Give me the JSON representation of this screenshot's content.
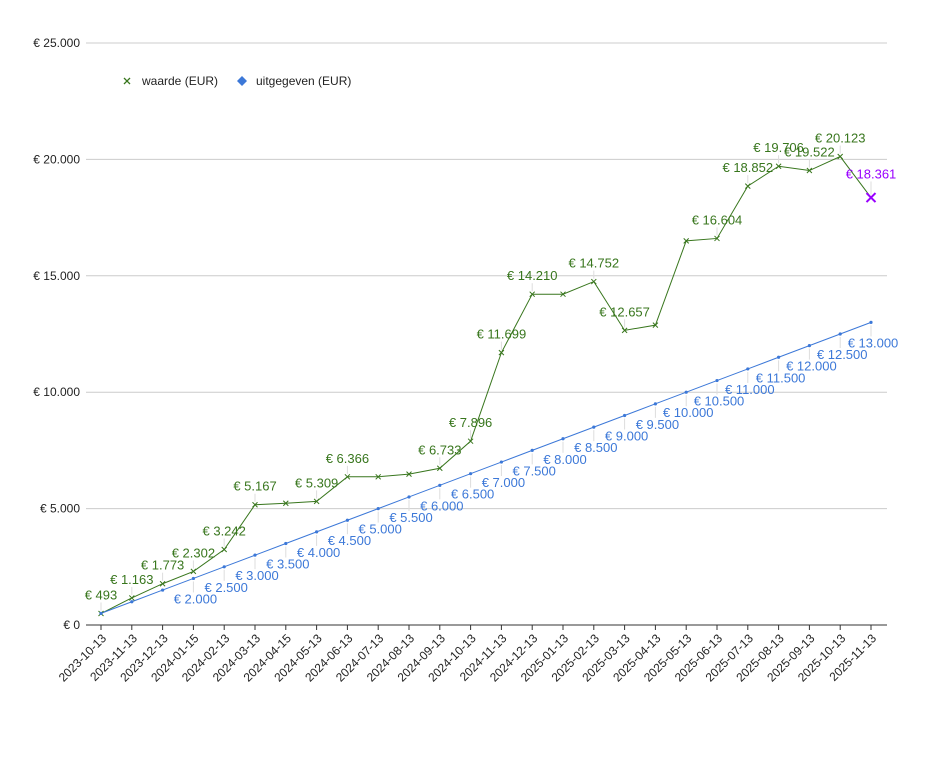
{
  "chart_data": {
    "type": "line",
    "x": [
      "2023-10-13",
      "2023-11-13",
      "2023-12-13",
      "2024-01-15",
      "2024-02-13",
      "2024-03-13",
      "2024-04-15",
      "2024-05-13",
      "2024-06-13",
      "2024-07-13",
      "2024-08-13",
      "2024-09-13",
      "2024-10-13",
      "2024-11-13",
      "2024-12-13",
      "2025-01-13",
      "2025-02-13",
      "2025-03-13",
      "2025-04-13",
      "2025-05-13",
      "2025-06-13",
      "2025-07-13",
      "2025-08-13",
      "2025-09-13",
      "2025-10-13",
      "2025-11-13"
    ],
    "y_ticks": [
      "€ 0",
      "€ 5.000",
      "€ 10.000",
      "€ 15.000",
      "€ 20.000",
      "€ 25.000"
    ],
    "ylim": [
      0,
      25000
    ],
    "grid": true,
    "legend_position": "top-left",
    "series": [
      {
        "name": "waarde (EUR)",
        "color": "#38761d",
        "marker": "x",
        "values": [
          493,
          1163,
          1773,
          2302,
          3242,
          5167,
          5230,
          5309,
          6366,
          6366,
          6480,
          6733,
          7896,
          11699,
          14210,
          14210,
          14752,
          12657,
          12880,
          16500,
          16604,
          18852,
          19706,
          19522,
          20123,
          18361
        ],
        "labels": [
          "€ 493",
          "€ 1.163",
          "€ 1.773",
          "€ 2.302",
          "€ 3.242",
          "€ 5.167",
          "",
          "€ 5.309",
          "€ 6.366",
          "",
          "",
          "€ 6.733",
          "€ 7.896",
          "€ 11.699",
          "€ 14.210",
          "",
          "€ 14.752",
          "€ 12.657",
          "",
          "",
          "€ 16.604",
          "€ 18.852",
          "€ 19.706",
          "€ 19.522",
          "€ 20.123",
          "€ 18.361"
        ]
      },
      {
        "name": "uitgegeven (EUR)",
        "color": "#3c78d8",
        "marker": "diamond",
        "values": [
          500,
          1000,
          1500,
          2000,
          2500,
          3000,
          3500,
          4000,
          4500,
          5000,
          5500,
          6000,
          6500,
          7000,
          7500,
          8000,
          8500,
          9000,
          9500,
          10000,
          10500,
          11000,
          11500,
          12000,
          12500,
          13000
        ],
        "labels": [
          "",
          "",
          "",
          "€ 2.000",
          "€ 2.500",
          "€ 3.000",
          "€ 3.500",
          "€ 4.000",
          "€ 4.500",
          "€ 5.000",
          "€ 5.500",
          "€ 6.000",
          "€ 6.500",
          "€ 7.000",
          "€ 7.500",
          "€ 8.000",
          "€ 8.500",
          "€ 9.000",
          "€ 9.500",
          "€ 10.000",
          "€ 10.500",
          "€ 11.000",
          "€ 11.500",
          "€ 12.000",
          "€ 12.500",
          "€ 13.000"
        ]
      }
    ],
    "highlight": {
      "series": 0,
      "index": 25,
      "color": "#9900ff"
    }
  }
}
